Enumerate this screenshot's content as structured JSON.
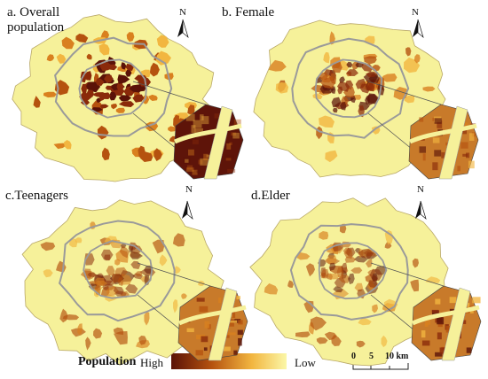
{
  "panels": [
    {
      "title": "a. Overall population",
      "north": "N"
    },
    {
      "title": "b. Female",
      "north": "N"
    },
    {
      "title": "c.Teenagers",
      "north": "N"
    },
    {
      "title": "d.Elder",
      "north": "N"
    }
  ],
  "legend": {
    "title": "Population",
    "high": "High",
    "low": "Low"
  },
  "scale_bar": {
    "labels": [
      "0",
      "5",
      "10 km"
    ]
  }
}
